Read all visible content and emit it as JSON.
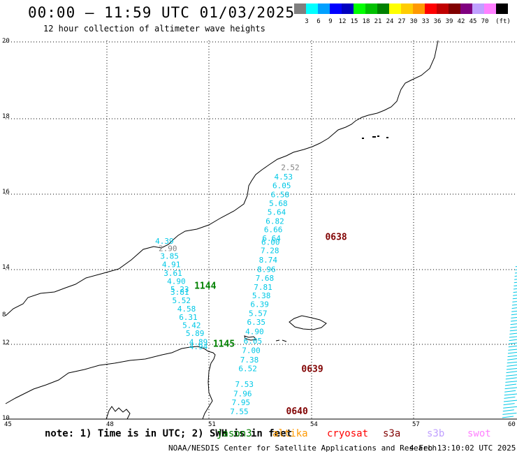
{
  "header": {
    "title": "00:00 – 11:59 UTC 01/03/2025",
    "subtitle": "12 hour collection of altimeter wave heights"
  },
  "legend": {
    "colors": [
      "#7f7f7f",
      "#00ffff",
      "#00a0ff",
      "#0000ff",
      "#0000c0",
      "#00ff00",
      "#00c000",
      "#008000",
      "#ffff00",
      "#ffcc00",
      "#ff9900",
      "#ff0000",
      "#c00000",
      "#800000",
      "#800080",
      "#c0a0ff",
      "#ff80ff",
      "#000000"
    ],
    "labels": [
      "3",
      "6",
      "9",
      "12",
      "15",
      "18",
      "21",
      "24",
      "27",
      "30",
      "33",
      "36",
      "39",
      "42",
      "45",
      "70"
    ],
    "unit": "(ft)"
  },
  "map": {
    "lat_labels": [
      "20",
      "18",
      "16",
      "14",
      "12",
      "10"
    ],
    "lon_labels": [
      "45",
      "48",
      "51",
      "54",
      "57",
      "60"
    ],
    "edge_label": "8",
    "swh_labels": [
      {
        "text": "2.52",
        "color": "#808080",
        "lon": 53.1,
        "lat": 16.6
      },
      {
        "text": "4.53",
        "color": "#00c8e6",
        "lon": 52.9,
        "lat": 16.35
      },
      {
        "text": "6.05",
        "color": "#00c8e6",
        "lon": 52.85,
        "lat": 16.12
      },
      {
        "text": "6.58",
        "color": "#00c8e6",
        "lon": 52.8,
        "lat": 15.88
      },
      {
        "text": "5.68",
        "color": "#00c8e6",
        "lon": 52.75,
        "lat": 15.65
      },
      {
        "text": "5.64",
        "color": "#00c8e6",
        "lon": 52.7,
        "lat": 15.42
      },
      {
        "text": "6.82",
        "color": "#00c8e6",
        "lon": 52.65,
        "lat": 15.18
      },
      {
        "text": "6.66",
        "color": "#00c8e6",
        "lon": 52.6,
        "lat": 14.95
      },
      {
        "text": "6.64",
        "color": "#00c8e6",
        "lon": 52.55,
        "lat": 14.72
      },
      {
        "text": "6.00",
        "color": "#00c8e6",
        "lon": 52.52,
        "lat": 14.62
      },
      {
        "text": "7.28",
        "color": "#00c8e6",
        "lon": 52.5,
        "lat": 14.4
      },
      {
        "text": "8.74",
        "color": "#00c8e6",
        "lon": 52.45,
        "lat": 14.15
      },
      {
        "text": "8.96",
        "color": "#00c8e6",
        "lon": 52.4,
        "lat": 13.9
      },
      {
        "text": "7.68",
        "color": "#00c8e6",
        "lon": 52.35,
        "lat": 13.67
      },
      {
        "text": "7.81",
        "color": "#00c8e6",
        "lon": 52.3,
        "lat": 13.43
      },
      {
        "text": "5.38",
        "color": "#00c8e6",
        "lon": 52.25,
        "lat": 13.2
      },
      {
        "text": "6.39",
        "color": "#00c8e6",
        "lon": 52.2,
        "lat": 12.97
      },
      {
        "text": "5.57",
        "color": "#00c8e6",
        "lon": 52.15,
        "lat": 12.73
      },
      {
        "text": "6.35",
        "color": "#00c8e6",
        "lon": 52.1,
        "lat": 12.5
      },
      {
        "text": "4.90",
        "color": "#00c8e6",
        "lon": 52.05,
        "lat": 12.25
      },
      {
        "text": "6.05",
        "color": "#00c8e6",
        "lon": 52.0,
        "lat": 12.0
      },
      {
        "text": "7.00",
        "color": "#00c8e6",
        "lon": 51.95,
        "lat": 11.75
      },
      {
        "text": "7.38",
        "color": "#00c8e6",
        "lon": 51.9,
        "lat": 11.5
      },
      {
        "text": "6.52",
        "color": "#00c8e6",
        "lon": 51.85,
        "lat": 11.27
      },
      {
        "text": "7.53",
        "color": "#00c8e6",
        "lon": 51.75,
        "lat": 10.85
      },
      {
        "text": "7.96",
        "color": "#00c8e6",
        "lon": 51.7,
        "lat": 10.6
      },
      {
        "text": "7.95",
        "color": "#00c8e6",
        "lon": 51.65,
        "lat": 10.37
      },
      {
        "text": "7.55",
        "color": "#00c8e6",
        "lon": 51.6,
        "lat": 10.13
      },
      {
        "text": "4.39",
        "color": "#00c8e6",
        "lon": 49.4,
        "lat": 14.65
      },
      {
        "text": "2.90",
        "color": "#808080",
        "lon": 49.5,
        "lat": 14.45
      },
      {
        "text": "3.85",
        "color": "#00c8e6",
        "lon": 49.55,
        "lat": 14.25
      },
      {
        "text": "4.91",
        "color": "#00c8e6",
        "lon": 49.6,
        "lat": 14.03
      },
      {
        "text": "3.61",
        "color": "#00c8e6",
        "lon": 49.65,
        "lat": 13.8
      },
      {
        "text": "4.90",
        "color": "#00c8e6",
        "lon": 49.75,
        "lat": 13.58
      },
      {
        "text": "5.23",
        "color": "#00c8e6",
        "lon": 49.85,
        "lat": 13.37
      },
      {
        "text": "3.81",
        "color": "#00c8e6",
        "lon": 49.85,
        "lat": 13.3
      },
      {
        "text": "5.52",
        "color": "#00c8e6",
        "lon": 49.9,
        "lat": 13.07
      },
      {
        "text": "4.58",
        "color": "#00c8e6",
        "lon": 50.05,
        "lat": 12.85
      },
      {
        "text": "6.31",
        "color": "#00c8e6",
        "lon": 50.1,
        "lat": 12.63
      },
      {
        "text": "5.42",
        "color": "#00c8e6",
        "lon": 50.2,
        "lat": 12.42
      },
      {
        "text": "5.89",
        "color": "#00c8e6",
        "lon": 50.3,
        "lat": 12.2
      },
      {
        "text": "4.89",
        "color": "#00c8e6",
        "lon": 50.4,
        "lat": 11.97
      },
      {
        "text": "4.94",
        "color": "#00c8e6",
        "lon": 50.4,
        "lat": 11.85
      }
    ],
    "time_labels": [
      {
        "text": "0638",
        "color": "#800000",
        "lon": 54.4,
        "lat": 14.75
      },
      {
        "text": "1144",
        "color": "#008000",
        "lon": 50.55,
        "lat": 13.45
      },
      {
        "text": "1145",
        "color": "#008000",
        "lon": 51.1,
        "lat": 11.92
      },
      {
        "text": "0639",
        "color": "#800000",
        "lon": 53.7,
        "lat": 11.25
      },
      {
        "text": "0640",
        "color": "#800000",
        "lon": 53.25,
        "lat": 10.13
      }
    ]
  },
  "note": {
    "text": "note:  1) Time is in UTC; 2) SWH is in feet",
    "satellites": [
      {
        "name": "jason3",
        "color": "#008000"
      },
      {
        "name": "altika",
        "color": "#ff9900"
      },
      {
        "name": "cryosat",
        "color": "#ff0000"
      },
      {
        "name": "s3a",
        "color": "#800000"
      },
      {
        "name": "s3b",
        "color": "#c0a0ff"
      },
      {
        "name": "swot",
        "color": "#ff80ff"
      }
    ]
  },
  "footer": {
    "credit": "NOAA/NESDIS Center for Satellite Applications and Research",
    "timestamp": "4 Feb 13:10:02 UTC 2025"
  }
}
